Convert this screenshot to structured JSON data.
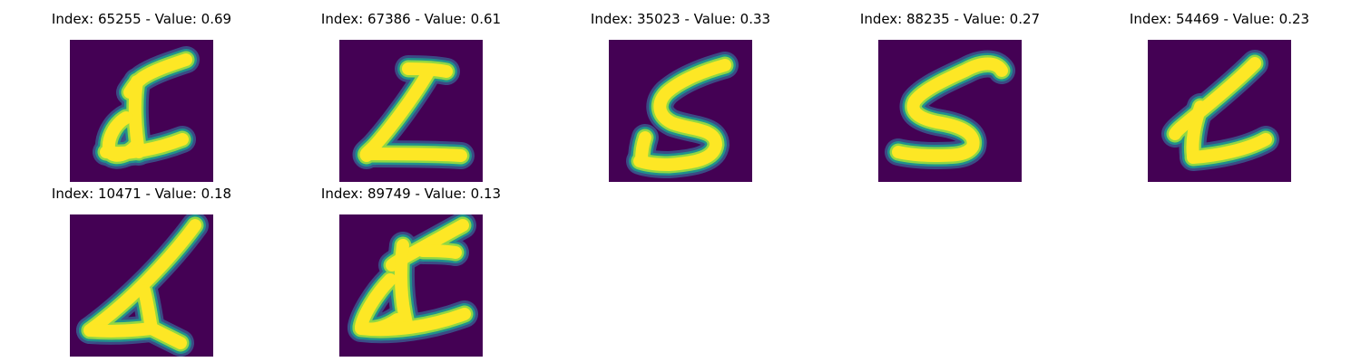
{
  "colors": {
    "background": "#440154",
    "stroke_core": "#fde725",
    "stroke_mid": "#8fd744",
    "stroke_edge": "#21918c",
    "stroke_outer": "#3b528b"
  },
  "panels": [
    {
      "title": "Index: 65255 - Value: 0.69"
    },
    {
      "title": "Index: 67386 - Value: 0.61"
    },
    {
      "title": "Index: 35023 - Value: 0.33"
    },
    {
      "title": "Index: 88235 - Value: 0.27"
    },
    {
      "title": "Index: 54469 - Value: 0.23"
    },
    {
      "title": "Index: 10471 - Value: 0.18"
    },
    {
      "title": "Index: 89749 - Value: 0.13"
    }
  ]
}
